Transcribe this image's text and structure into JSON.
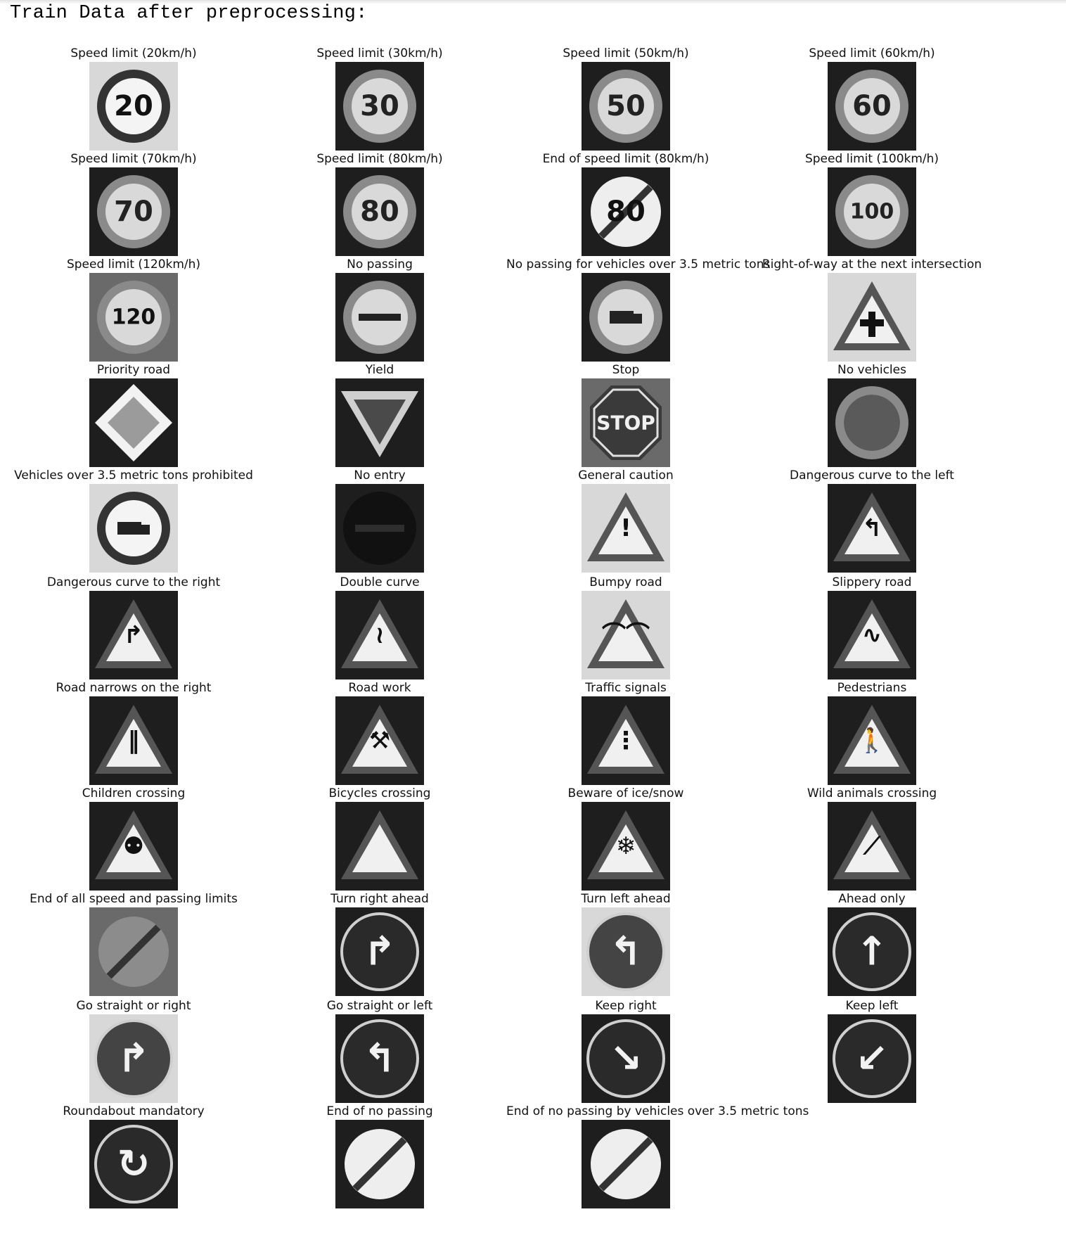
{
  "heading": "Train Data after preprocessing:",
  "signs": [
    {
      "label": "Speed limit (20km/h)",
      "icon": "speed-limit-20-icon",
      "glyph": "20",
      "shape": "circle",
      "tone": "light"
    },
    {
      "label": "Speed limit (30km/h)",
      "icon": "speed-limit-30-icon",
      "glyph": "30",
      "shape": "circle",
      "tone": "dark"
    },
    {
      "label": "Speed limit (50km/h)",
      "icon": "speed-limit-50-icon",
      "glyph": "50",
      "shape": "circle",
      "tone": "dark"
    },
    {
      "label": "Speed limit (60km/h)",
      "icon": "speed-limit-60-icon",
      "glyph": "60",
      "shape": "circle",
      "tone": "dark"
    },
    {
      "label": "Speed limit (70km/h)",
      "icon": "speed-limit-70-icon",
      "glyph": "70",
      "shape": "circle",
      "tone": "dark"
    },
    {
      "label": "Speed limit (80km/h)",
      "icon": "speed-limit-80-icon",
      "glyph": "80",
      "shape": "circle",
      "tone": "dark"
    },
    {
      "label": "End of speed limit (80km/h)",
      "icon": "end-speed-limit-80-icon",
      "glyph": "80",
      "shape": "end",
      "tone": "dark"
    },
    {
      "label": "Speed limit (100km/h)",
      "icon": "speed-limit-100-icon",
      "glyph": "100",
      "shape": "circle",
      "tone": "dark"
    },
    {
      "label": "Speed limit (120km/h)",
      "icon": "speed-limit-120-icon",
      "glyph": "120",
      "shape": "circle",
      "tone": "mid"
    },
    {
      "label": "No passing",
      "icon": "no-passing-icon",
      "glyph": "",
      "shape": "circle-bar",
      "tone": "dark"
    },
    {
      "label": "No passing for vehicles over 3.5 metric tons",
      "icon": "no-passing-trucks-icon",
      "glyph": "",
      "shape": "circle-truck",
      "tone": "dark"
    },
    {
      "label": "Right-of-way at the next intersection",
      "icon": "right-of-way-icon",
      "glyph": "",
      "shape": "triangle-cross",
      "tone": "light"
    },
    {
      "label": "Priority road",
      "icon": "priority-road-icon",
      "glyph": "",
      "shape": "diamond",
      "tone": "dark"
    },
    {
      "label": "Yield",
      "icon": "yield-icon",
      "glyph": "",
      "shape": "yield",
      "tone": "dark"
    },
    {
      "label": "Stop",
      "icon": "stop-icon",
      "glyph": "STOP",
      "shape": "octagon",
      "tone": "mid"
    },
    {
      "label": "No vehicles",
      "icon": "no-vehicles-icon",
      "glyph": "",
      "shape": "circle-empty",
      "tone": "dark"
    },
    {
      "label": "Vehicles over 3.5 metric tons prohibited",
      "icon": "trucks-prohibited-icon",
      "glyph": "",
      "shape": "circle-truck",
      "tone": "light"
    },
    {
      "label": "No entry",
      "icon": "no-entry-icon",
      "glyph": "",
      "shape": "no-entry",
      "tone": "dark"
    },
    {
      "label": "General caution",
      "icon": "general-caution-icon",
      "glyph": "!",
      "shape": "triangle",
      "tone": "light"
    },
    {
      "label": "Dangerous curve to the left",
      "icon": "curve-left-icon",
      "glyph": "↰",
      "shape": "triangle",
      "tone": "dark"
    },
    {
      "label": "Dangerous curve to the right",
      "icon": "curve-right-icon",
      "glyph": "↱",
      "shape": "triangle",
      "tone": "dark"
    },
    {
      "label": "Double curve",
      "icon": "double-curve-icon",
      "glyph": "≀",
      "shape": "triangle",
      "tone": "dark"
    },
    {
      "label": "Bumpy road",
      "icon": "bumpy-road-icon",
      "glyph": "⌒⌒",
      "shape": "triangle",
      "tone": "light"
    },
    {
      "label": "Slippery road",
      "icon": "slippery-road-icon",
      "glyph": "∿",
      "shape": "triangle",
      "tone": "dark"
    },
    {
      "label": "Road narrows on the right",
      "icon": "road-narrows-icon",
      "glyph": "‖",
      "shape": "triangle",
      "tone": "dark"
    },
    {
      "label": "Road work",
      "icon": "road-work-icon",
      "glyph": "⚒",
      "shape": "triangle",
      "tone": "dark"
    },
    {
      "label": "Traffic signals",
      "icon": "traffic-signals-icon",
      "glyph": "⋮",
      "shape": "triangle",
      "tone": "dark"
    },
    {
      "label": "Pedestrians",
      "icon": "pedestrians-icon",
      "glyph": "🚶",
      "shape": "triangle",
      "tone": "dark"
    },
    {
      "label": "Children crossing",
      "icon": "children-crossing-icon",
      "glyph": "⚉",
      "shape": "triangle",
      "tone": "dark"
    },
    {
      "label": "Bicycles crossing",
      "icon": "bicycles-crossing-icon",
      "glyph": "",
      "shape": "triangle",
      "tone": "dark"
    },
    {
      "label": "Beware of ice/snow",
      "icon": "ice-snow-icon",
      "glyph": "❄",
      "shape": "triangle",
      "tone": "dark"
    },
    {
      "label": "Wild animals crossing",
      "icon": "wild-animals-icon",
      "glyph": "⟋",
      "shape": "triangle",
      "tone": "dark"
    },
    {
      "label": "End of all speed and passing limits",
      "icon": "end-all-limits-icon",
      "glyph": "",
      "shape": "end-all",
      "tone": "mid"
    },
    {
      "label": "Turn right ahead",
      "icon": "turn-right-ahead-icon",
      "glyph": "↱",
      "shape": "blue-circle",
      "tone": "dark"
    },
    {
      "label": "Turn left ahead",
      "icon": "turn-left-ahead-icon",
      "glyph": "↰",
      "shape": "blue-circle",
      "tone": "light"
    },
    {
      "label": "Ahead only",
      "icon": "ahead-only-icon",
      "glyph": "↑",
      "shape": "blue-circle",
      "tone": "dark"
    },
    {
      "label": "Go straight or right",
      "icon": "straight-or-right-icon",
      "glyph": "↱",
      "shape": "blue-circle",
      "tone": "light"
    },
    {
      "label": "Go straight or left",
      "icon": "straight-or-left-icon",
      "glyph": "↰",
      "shape": "blue-circle",
      "tone": "dark"
    },
    {
      "label": "Keep right",
      "icon": "keep-right-icon",
      "glyph": "↘",
      "shape": "blue-circle",
      "tone": "dark"
    },
    {
      "label": "Keep left",
      "icon": "keep-left-icon",
      "glyph": "↙",
      "shape": "blue-circle",
      "tone": "dark"
    },
    {
      "label": "Roundabout mandatory",
      "icon": "roundabout-icon",
      "glyph": "↻",
      "shape": "blue-circle",
      "tone": "dark"
    },
    {
      "label": "End of no passing",
      "icon": "end-no-passing-icon",
      "glyph": "",
      "shape": "end",
      "tone": "dark"
    },
    {
      "label": "End of no passing by vehicles over 3.5 metric tons",
      "icon": "end-no-passing-trucks-icon",
      "glyph": "",
      "shape": "end",
      "tone": "dark"
    }
  ]
}
